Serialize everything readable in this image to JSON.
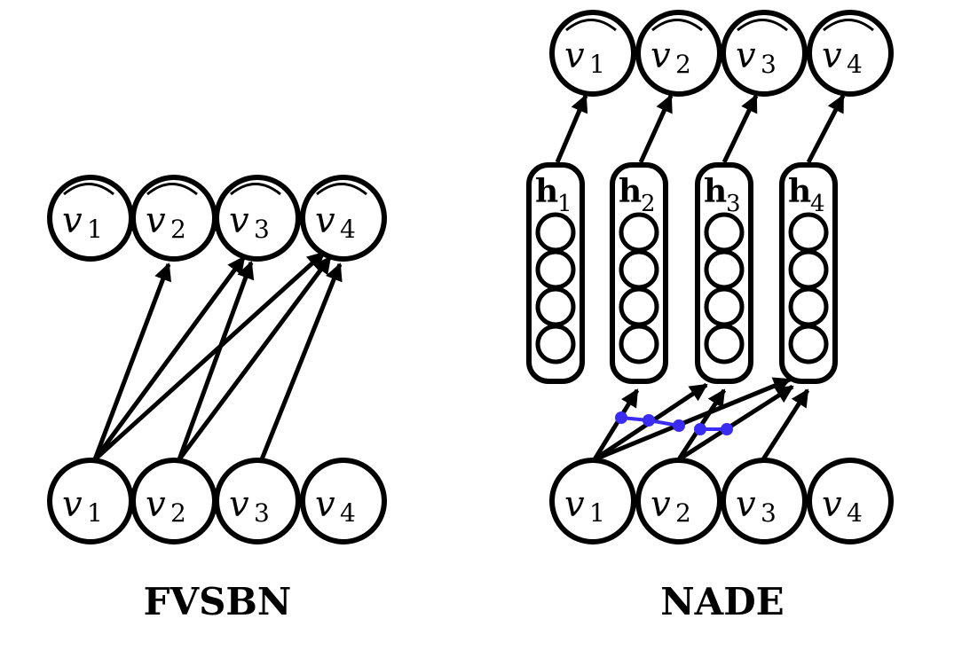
{
  "panels": [
    {
      "id": "fvsbn",
      "caption": "FVSBN",
      "inputs": [
        {
          "var": "v",
          "sub": "1"
        },
        {
          "var": "v",
          "sub": "2"
        },
        {
          "var": "v",
          "sub": "3"
        },
        {
          "var": "v",
          "sub": "4"
        }
      ],
      "outputs": [
        {
          "var": "v",
          "sub": "1",
          "hat": true
        },
        {
          "var": "v",
          "sub": "2",
          "hat": true
        },
        {
          "var": "v",
          "sub": "3",
          "hat": true
        },
        {
          "var": "v",
          "sub": "4",
          "hat": true
        }
      ],
      "edges": [
        {
          "from": "v1",
          "to": "v2_hat"
        },
        {
          "from": "v1",
          "to": "v3_hat"
        },
        {
          "from": "v1",
          "to": "v4_hat"
        },
        {
          "from": "v2",
          "to": "v3_hat"
        },
        {
          "from": "v2",
          "to": "v4_hat"
        },
        {
          "from": "v3",
          "to": "v4_hat"
        }
      ]
    },
    {
      "id": "nade",
      "caption": "NADE",
      "inputs": [
        {
          "var": "v",
          "sub": "1"
        },
        {
          "var": "v",
          "sub": "2"
        },
        {
          "var": "v",
          "sub": "3"
        },
        {
          "var": "v",
          "sub": "4"
        }
      ],
      "hidden": [
        {
          "var": "h",
          "sub": "1",
          "units": 4
        },
        {
          "var": "h",
          "sub": "2",
          "units": 4
        },
        {
          "var": "h",
          "sub": "3",
          "units": 4
        },
        {
          "var": "h",
          "sub": "4",
          "units": 4
        }
      ],
      "outputs": [
        {
          "var": "v",
          "sub": "1",
          "hat": true
        },
        {
          "var": "v",
          "sub": "2",
          "hat": true
        },
        {
          "var": "v",
          "sub": "3",
          "hat": true
        },
        {
          "var": "v",
          "sub": "4",
          "hat": true
        }
      ],
      "edges": [
        {
          "from": "v1",
          "to": "h2"
        },
        {
          "from": "v1",
          "to": "h3"
        },
        {
          "from": "v1",
          "to": "h4"
        },
        {
          "from": "v2",
          "to": "h3"
        },
        {
          "from": "v2",
          "to": "h4"
        },
        {
          "from": "v3",
          "to": "h4"
        },
        {
          "from": "h1",
          "to": "v1_hat"
        },
        {
          "from": "h2",
          "to": "v2_hat"
        },
        {
          "from": "h3",
          "to": "v3_hat"
        },
        {
          "from": "h4",
          "to": "v4_hat"
        }
      ],
      "shared_weights_color": "#3a2cf2"
    }
  ],
  "colors": {
    "stroke": "#000000",
    "background": "#ffffff",
    "shared_weights": "#3a2cf2"
  }
}
